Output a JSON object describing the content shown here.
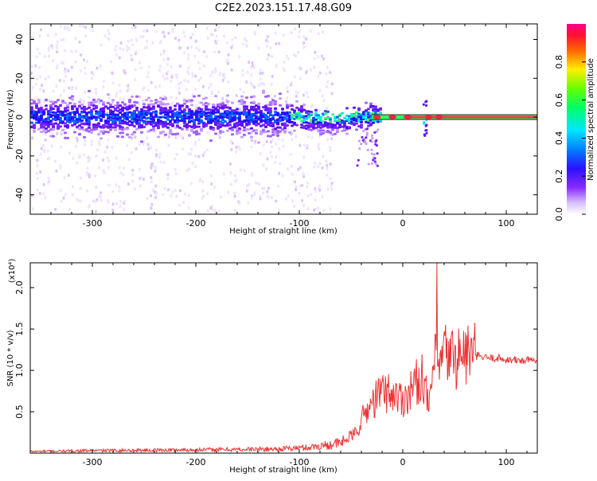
{
  "title": "C2E2.2023.151.17.48.G09",
  "colors": {
    "signal_red": "#ee3333",
    "purple_low": "#c9a6f5",
    "purple_mid": "#6a1bff",
    "cyan": "#00e0ff",
    "green": "#33ff33",
    "axis": "#000000"
  },
  "chart_data": [
    {
      "type": "heatmap",
      "title": "C2E2.2023.151.17.48.G09",
      "xlabel": "Height of straight line (km)",
      "ylabel": "Frequency (Hz)",
      "xlim": [
        -360,
        130
      ],
      "ylim": [
        -50,
        48
      ],
      "x_ticks": [
        -300,
        -200,
        -100,
        0,
        100
      ],
      "x_tick_labels": [
        "-300",
        "-200",
        "-100",
        "0",
        "100"
      ],
      "y_ticks": [
        -40,
        -20,
        0,
        20,
        40
      ],
      "y_tick_labels": [
        "-40",
        "-20",
        "0",
        "20",
        "40"
      ],
      "colorbar": {
        "label": "Normalized spectral amplitude",
        "range": [
          0,
          1
        ],
        "ticks": [
          0.0,
          0.2,
          0.4,
          0.6,
          0.8
        ],
        "tick_labels": [
          "0.0",
          "0.2",
          "0.4",
          "0.6",
          "0.8"
        ],
        "colormap": "rainbow (white-purple-blue-cyan-green-yellow-red-magenta)"
      },
      "features": {
        "core_band_halfwidth_hz": 9,
        "noise_extent_hz": 48,
        "noise_end_km": -70,
        "signal_line_start_km": -30,
        "signal_line_freq_hz": 0
      }
    },
    {
      "type": "line",
      "xlabel": "Height of straight line (km)",
      "ylabel": "SNR (10 * v/v)",
      "y_multiplier_label": "(x10⁴)",
      "xlim": [
        -360,
        130
      ],
      "ylim": [
        0,
        2.3
      ],
      "x_ticks": [
        -300,
        -200,
        -100,
        0,
        100
      ],
      "x_tick_labels": [
        "-300",
        "-200",
        "-100",
        "0",
        "100"
      ],
      "y_ticks": [
        0.5,
        1.0,
        1.5,
        2.0
      ],
      "y_tick_labels": [
        "0.5",
        "1.0",
        "1.5",
        "2.0"
      ],
      "series": [
        {
          "color": "#ee3333",
          "anchors_x": [
            -360,
            -300,
            -200,
            -120,
            -90,
            -60,
            -45,
            -38,
            -30,
            -20,
            -10,
            0,
            10,
            20,
            25,
            30,
            35,
            40,
            50,
            60,
            70,
            80,
            90,
            100,
            110,
            120,
            130
          ],
          "anchors_y": [
            0.02,
            0.03,
            0.04,
            0.05,
            0.07,
            0.12,
            0.25,
            0.45,
            0.6,
            0.75,
            0.72,
            0.65,
            0.8,
            0.95,
            0.5,
            1.1,
            1.0,
            1.2,
            1.15,
            1.2,
            1.18,
            1.15,
            1.15,
            1.13,
            1.12,
            1.12,
            1.12
          ],
          "peak": {
            "x": 33,
            "y": 2.3
          }
        }
      ]
    }
  ]
}
